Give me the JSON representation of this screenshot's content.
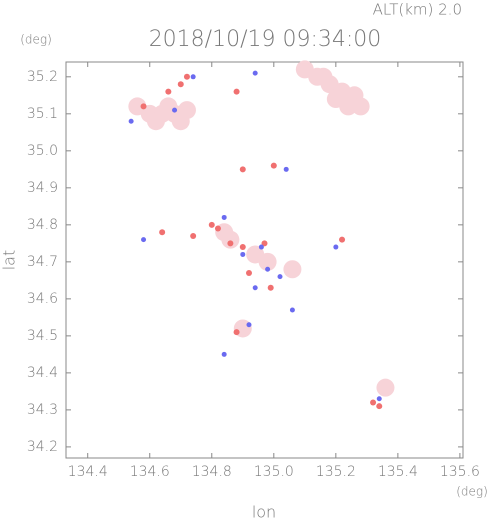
{
  "chart_data": {
    "type": "scatter",
    "title": "ALT(km) 2.0",
    "subtitle": "2018/10/19 09:34:00",
    "x_label": "lon",
    "y_label": "lat",
    "x_unit": "(deg)",
    "y_unit": "(deg)",
    "xlim": [
      134.33,
      135.61
    ],
    "ylim": [
      34.17,
      35.24
    ],
    "xticks": [
      134.4,
      134.6,
      134.8,
      {
        "value": 135,
        "label": "135.0"
      },
      135.2,
      135.4,
      135.6
    ],
    "yticks": [
      34.2,
      34.3,
      34.4,
      34.5,
      34.6,
      34.7,
      34.8,
      34.9,
      {
        "value": 35,
        "label": "35.0"
      },
      35.1,
      35.2
    ],
    "series": [
      {
        "color": "#f7d3d8",
        "marker_size": 9,
        "x": [
          134.6,
          134.64,
          134.68,
          134.72,
          134.66,
          134.62,
          134.7,
          134.56,
          135.1,
          135.14,
          135.18,
          135.22,
          135.26,
          135.2,
          135.24,
          135.28,
          135.16,
          135.36,
          135.06,
          134.98,
          134.94,
          134.9,
          134.86,
          134.84
        ],
        "values": [
          35.1,
          35.1,
          35.1,
          35.11,
          35.12,
          35.08,
          35.08,
          35.12,
          35.22,
          35.2,
          35.18,
          35.16,
          35.15,
          35.14,
          35.12,
          35.12,
          35.2,
          34.36,
          34.68,
          34.7,
          34.72,
          34.52,
          34.76,
          34.78
        ]
      },
      {
        "color": "#f07070",
        "marker_size": 3,
        "x": [
          134.58,
          134.66,
          134.7,
          134.72,
          134.9,
          135.0,
          134.64,
          134.8,
          134.82,
          134.86,
          134.9,
          134.97,
          135.22,
          135.34,
          135.32,
          134.92,
          134.74,
          134.88,
          134.99,
          134.88
        ],
        "values": [
          35.12,
          35.16,
          35.18,
          35.2,
          34.95,
          34.96,
          34.78,
          34.8,
          34.79,
          34.75,
          34.74,
          34.75,
          34.76,
          34.31,
          34.32,
          34.67,
          34.77,
          35.16,
          34.63,
          34.51
        ]
      },
      {
        "color": "#6a6af0",
        "marker_size": 2.5,
        "x": [
          134.68,
          134.74,
          134.54,
          134.94,
          135.04,
          134.58,
          134.84,
          134.9,
          134.96,
          135.02,
          134.94,
          134.84,
          135.34,
          135.2,
          135.06,
          134.92,
          134.98
        ],
        "values": [
          35.11,
          35.2,
          35.08,
          35.21,
          34.95,
          34.76,
          34.82,
          34.72,
          34.74,
          34.66,
          34.63,
          34.45,
          34.33,
          34.74,
          34.57,
          34.53,
          34.68
        ]
      }
    ]
  }
}
